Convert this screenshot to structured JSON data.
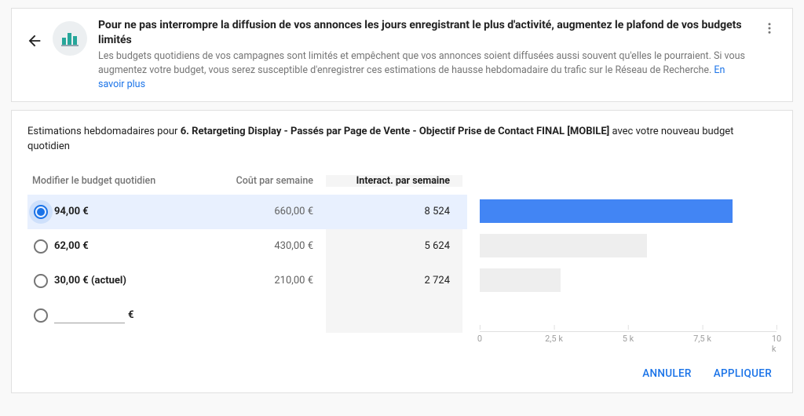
{
  "header": {
    "title_line1": "Pour ne pas interrompre la diffusion de vos annonces les jours enregistrant le plus d'activité, augmentez le plafond de vos ",
    "title_bold": "budgets limités",
    "desc": "Les budgets quotidiens de vos campagnes sont limités et empêchent que vos annonces soient diffusées aussi souvent qu'elles le pourraient. Si vous augmentez votre budget, vous serez susceptible d'enregistrer ces estimations de hausse hebdomadaire du trafic sur le Réseau de Recherche. ",
    "link": "En savoir plus"
  },
  "subhead": {
    "prefix": "Estimations hebdomadaires pour ",
    "campaign": "6. Retargeting Display - Passés par Page de Vente - Objectif Prise de Contact FINAL [MOBILE]",
    "suffix": " avec votre nouveau budget quotidien"
  },
  "columns": {
    "budget": "Modifier le budget quotidien",
    "cost": "Coût par semaine",
    "inter": "Interact. par semaine"
  },
  "rows": [
    {
      "budget": "94,00 €",
      "cost": "660,00 €",
      "inter": "8 524",
      "value": 8524,
      "selected": true,
      "current": false
    },
    {
      "budget": "62,00 €",
      "cost": "430,00 €",
      "inter": "5 624",
      "value": 5624,
      "selected": false,
      "current": false
    },
    {
      "budget": "30,00 € (actuel)",
      "cost": "210,00 €",
      "inter": "2 724",
      "value": 2724,
      "selected": false,
      "current": true
    }
  ],
  "custom_currency": "€",
  "chart": {
    "max": 10000,
    "ticks": [
      {
        "pos": 0,
        "label": "0"
      },
      {
        "pos": 2500,
        "label": "2,5 k"
      },
      {
        "pos": 5000,
        "label": "5 k"
      },
      {
        "pos": 7500,
        "label": "7,5 k"
      },
      {
        "pos": 10000,
        "label": "10 k"
      }
    ],
    "selected_color": "#4285f4",
    "bar_color": "#eeeeee"
  },
  "footer": {
    "cancel": "ANNULER",
    "apply": "APPLIQUER"
  }
}
